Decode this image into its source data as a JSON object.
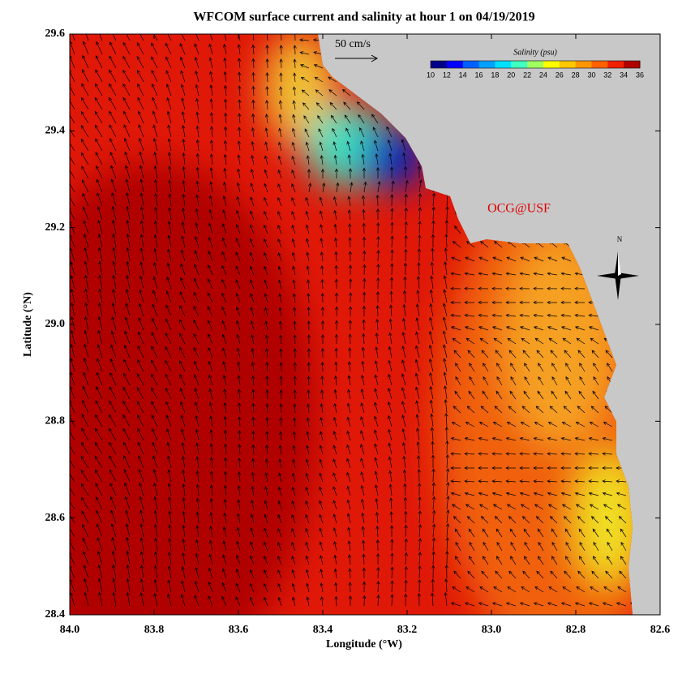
{
  "chart_data": {
    "type": "map",
    "title": "WFCOM surface current and salinity at hour 1 on 04/19/2019",
    "x_label": "Longitude (°W)",
    "y_label": "Latitude (°N)",
    "xlim": [
      84.0,
      82.6
    ],
    "ylim": [
      28.4,
      29.6
    ],
    "xticks": [
      {
        "value": 84.0,
        "label": "84.0"
      },
      {
        "value": 83.8,
        "label": "83.8"
      },
      {
        "value": 83.6,
        "label": "83.6"
      },
      {
        "value": 83.4,
        "label": "83.4"
      },
      {
        "value": 83.2,
        "label": "83.2"
      },
      {
        "value": 83.0,
        "label": "83.0"
      },
      {
        "value": 82.8,
        "label": "82.8"
      },
      {
        "value": 82.6,
        "label": "82.6"
      }
    ],
    "yticks": [
      28.4,
      28.6,
      28.8,
      {
        "value": 29.0,
        "label": "29.0"
      },
      29.2,
      29.4,
      29.6
    ],
    "scale_label": "50 cm/s",
    "watermark": "OCG@USF",
    "compass_label": "N",
    "colorbar": {
      "label": "Salinity (psu)",
      "ticks": [
        10,
        12,
        14,
        16,
        18,
        20,
        22,
        24,
        26,
        28,
        30,
        32,
        34,
        36
      ],
      "colors": [
        "#00008b",
        "#0000ff",
        "#0060ff",
        "#00a0ff",
        "#00e0ff",
        "#40ffc0",
        "#a0ff60",
        "#ffff00",
        "#ffc800",
        "#ff9600",
        "#ff6000",
        "#f02000",
        "#b00000"
      ]
    }
  }
}
